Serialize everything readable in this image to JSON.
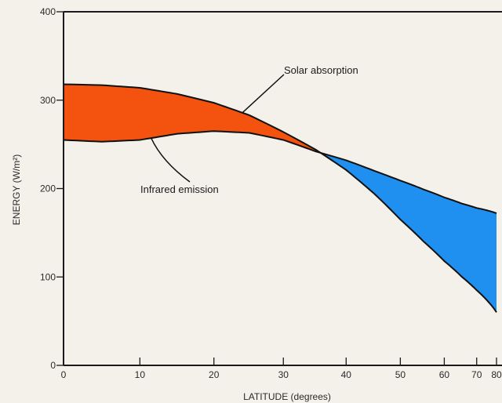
{
  "chart_data": {
    "type": "area",
    "title": "",
    "xlabel": "LATITUDE (degrees)",
    "ylabel": "ENERGY (W/m²)",
    "x_scale": "sine-of-latitude",
    "xlim": [
      0,
      80
    ],
    "ylim": [
      0,
      400
    ],
    "x_ticks": [
      0,
      10,
      20,
      30,
      40,
      50,
      60,
      70,
      80
    ],
    "x_tick_labels": [
      "0",
      "10",
      "20",
      "30",
      "40",
      "50",
      "60",
      "70",
      "80"
    ],
    "y_ticks": [
      0,
      100,
      200,
      300,
      400
    ],
    "y_tick_labels": [
      "0",
      "100",
      "200",
      "300",
      "400"
    ],
    "grid": false,
    "legend": "none",
    "series": [
      {
        "name": "Solar absorption",
        "x": [
          0,
          5,
          10,
          15,
          20,
          25,
          30,
          35,
          40,
          45,
          50,
          55,
          60,
          65,
          70,
          75,
          80
        ],
        "values": [
          318,
          317,
          314,
          307,
          297,
          283,
          264,
          244,
          221,
          194,
          165,
          140,
          118,
          100,
          85,
          72,
          60
        ]
      },
      {
        "name": "Infrared emission",
        "x": [
          0,
          5,
          10,
          15,
          20,
          25,
          30,
          35,
          40,
          45,
          50,
          55,
          60,
          65,
          70,
          75,
          80
        ],
        "values": [
          255,
          253,
          255,
          262,
          265,
          263,
          255,
          242,
          232,
          220,
          209,
          199,
          190,
          183,
          178,
          175,
          172
        ]
      }
    ],
    "fills": [
      {
        "region": "surplus",
        "between": [
          "Solar absorption",
          "Infrared emission"
        ],
        "color": "#f4520f"
      },
      {
        "region": "deficit",
        "between": [
          "Infrared emission",
          "Solar absorption"
        ],
        "color": "#1f8ff0"
      }
    ],
    "annotations": [
      {
        "text": "Solar absorption",
        "points_to": "Solar absorption"
      },
      {
        "text": "Infrared emission",
        "points_to": "Infrared emission"
      }
    ]
  }
}
